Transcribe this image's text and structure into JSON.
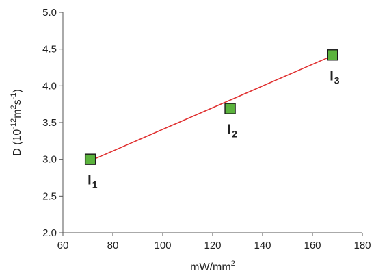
{
  "chart_data": {
    "type": "scatter",
    "xlabel_base": "mW/mm",
    "xlabel_sup": "2",
    "ylabel_parts": [
      {
        "t": "D (10",
        "sup": false
      },
      {
        "t": "-12",
        "sup": true
      },
      {
        "t": "m",
        "sup": false
      },
      {
        "t": "2",
        "sup": true
      },
      {
        "t": "s",
        "sup": false
      },
      {
        "t": "-1",
        "sup": true
      },
      {
        "t": ")",
        "sup": false
      }
    ],
    "xlim": [
      60,
      180
    ],
    "ylim": [
      2.0,
      5.0
    ],
    "xticks": [
      60,
      80,
      100,
      120,
      140,
      160,
      180
    ],
    "yticks": [
      "2.0",
      "2.5",
      "3.0",
      "3.5",
      "4.0",
      "4.5",
      "5.0"
    ],
    "grid": false,
    "points": [
      {
        "x": 71,
        "y": 3.0,
        "label": "I",
        "sub": "1"
      },
      {
        "x": 127,
        "y": 3.69,
        "label": "I",
        "sub": "2"
      },
      {
        "x": 168,
        "y": 4.42,
        "label": "I",
        "sub": "3"
      }
    ],
    "fit_line": {
      "x": [
        71,
        168
      ],
      "y": [
        2.98,
        4.41
      ]
    },
    "colors": {
      "marker_fill": "#5bb33d",
      "marker_edge": "#1a1a1a",
      "line": "#e03030",
      "axis": "#555555"
    }
  }
}
